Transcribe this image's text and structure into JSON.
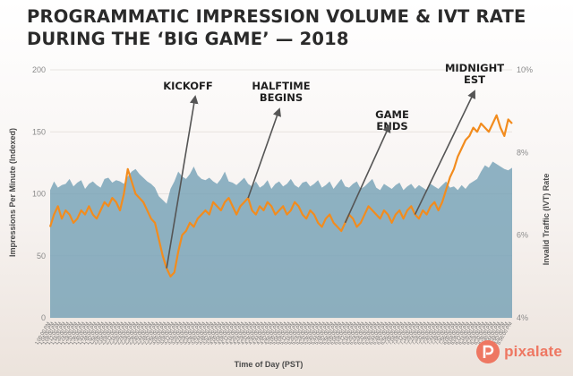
{
  "title_lines": [
    "PROGRAMMATIC IMPRESSION VOLUME & IVT RATE",
    "DURING THE ‘BIG GAME’ — 2018"
  ],
  "brand": "pixalate",
  "colors": {
    "impressions": "#6f9eb4",
    "ivt": "#f28c1e",
    "arrow": "#555555",
    "brand": "#ee7762"
  },
  "chart_data": {
    "type": "area+line",
    "title": "PROGRAMMATIC IMPRESSION VOLUME & IVT RATE DURING THE ‘BIG GAME’ — 2018",
    "xlabel": "Time of Day (PST)",
    "ylabel_left": "Impressions Per Minute (Indexed)",
    "ylabel_right": "Invalid Traffic (IVT) Rate",
    "left_axis": {
      "min": 0,
      "max": 200,
      "ticks": [
        0,
        50,
        100,
        150,
        200
      ]
    },
    "right_axis": {
      "min": 4,
      "max": 10,
      "ticks": [
        "4%",
        "6%",
        "8%",
        "10%"
      ],
      "tick_values": [
        4,
        6,
        8,
        10
      ]
    },
    "x_labels": [
      "1:00:00 PM",
      "1:04:00 PM",
      "1:08:00 PM",
      "1:12:00 PM",
      "1:16:00 PM",
      "1:20:00 PM",
      "1:24:00 PM",
      "1:28:00 PM",
      "1:32:00 PM",
      "1:36:00 PM",
      "1:40:00 PM",
      "1:44:00 PM",
      "1:48:00 PM",
      "1:52:00 PM",
      "1:56:00 PM",
      "2:00:00 PM",
      "2:04:00 PM",
      "2:08:00 PM",
      "2:12:00 PM",
      "2:16:00 PM",
      "2:20:00 PM",
      "2:24:00 PM",
      "2:28:00 PM",
      "2:32:00 PM",
      "2:36:00 PM",
      "2:40:00 PM",
      "2:44:00 PM",
      "2:48:00 PM",
      "2:52:00 PM",
      "2:56:00 PM",
      "3:00:00 PM",
      "3:04:00 PM",
      "3:08:00 PM",
      "3:12:00 PM",
      "3:16:00 PM",
      "3:20:00 PM",
      "3:24:00 PM",
      "3:28:00 PM",
      "3:32:00 PM",
      "3:36:00 PM",
      "3:40:00 PM",
      "3:44:00 PM",
      "3:48:00 PM",
      "3:52:00 PM",
      "3:56:00 PM",
      "4:00:00 PM",
      "4:04:00 PM",
      "4:08:00 PM",
      "4:12:00 PM",
      "4:16:00 PM",
      "4:20:00 PM",
      "4:24:00 PM",
      "4:28:00 PM",
      "4:32:00 PM",
      "4:36:00 PM",
      "4:40:00 PM",
      "4:44:00 PM",
      "4:48:00 PM",
      "4:52:00 PM",
      "4:56:00 PM",
      "5:00:00 PM",
      "5:04:00 PM",
      "5:08:00 PM",
      "5:12:00 PM",
      "5:16:00 PM",
      "5:20:00 PM",
      "5:24:00 PM",
      "5:28:00 PM",
      "5:32:00 PM",
      "5:36:00 PM",
      "5:40:00 PM",
      "5:44:00 PM",
      "5:48:00 PM",
      "5:52:00 PM",
      "5:56:00 PM",
      "6:00:00 PM",
      "6:04:00 PM",
      "6:08:00 PM",
      "6:12:00 PM",
      "6:16:00 PM",
      "6:20:00 PM",
      "6:24:00 PM",
      "6:28:00 PM",
      "6:32:00 PM",
      "6:36:00 PM",
      "6:40:00 PM",
      "6:44:00 PM",
      "6:48:00 PM",
      "6:52:00 PM",
      "6:56:00 PM",
      "7:00:00 PM",
      "7:04:00 PM",
      "7:08:00 PM",
      "7:12:00 PM",
      "7:16:00 PM",
      "7:20:00 PM",
      "7:24:00 PM",
      "7:28:00 PM",
      "7:32:00 PM",
      "7:36:00 PM",
      "7:40:00 PM",
      "7:44:00 PM",
      "7:48:00 PM",
      "7:52:00 PM",
      "7:56:00 PM",
      "8:00:00 PM",
      "8:04:00 PM",
      "8:08:00 PM",
      "8:12:00 PM",
      "8:16:00 PM",
      "8:20:00 PM",
      "8:24:00 PM",
      "8:28:00 PM",
      "8:32:00 PM",
      "8:36:00 PM",
      "8:40:00 PM",
      "8:44:00 PM",
      "8:48:00 PM",
      "8:52:00 PM",
      "8:56:00 PM"
    ],
    "impressions_series": {
      "name": "Impressions Per Minute (Indexed)",
      "values": [
        103,
        110,
        105,
        107,
        108,
        112,
        106,
        109,
        111,
        104,
        108,
        110,
        107,
        105,
        112,
        113,
        109,
        111,
        110,
        108,
        114,
        118,
        120,
        116,
        113,
        110,
        108,
        105,
        98,
        95,
        92,
        104,
        110,
        118,
        114,
        112,
        116,
        122,
        115,
        112,
        111,
        113,
        110,
        108,
        112,
        118,
        110,
        109,
        107,
        110,
        113,
        108,
        106,
        110,
        105,
        107,
        111,
        104,
        108,
        110,
        106,
        108,
        112,
        107,
        105,
        109,
        110,
        106,
        108,
        111,
        105,
        107,
        110,
        104,
        108,
        112,
        106,
        105,
        108,
        110,
        104,
        106,
        109,
        112,
        105,
        103,
        108,
        106,
        104,
        107,
        109,
        103,
        106,
        108,
        104,
        107,
        105,
        103,
        108,
        106,
        104,
        107,
        110,
        105,
        106,
        103,
        107,
        104,
        108,
        110,
        112,
        118,
        123,
        121,
        126,
        124,
        122,
        120,
        119,
        121
      ]
    },
    "ivt_series": {
      "name": "Invalid Traffic (IVT) Rate",
      "values": [
        6.2,
        6.5,
        6.7,
        6.4,
        6.6,
        6.5,
        6.3,
        6.4,
        6.6,
        6.5,
        6.7,
        6.5,
        6.4,
        6.6,
        6.8,
        6.7,
        6.9,
        6.8,
        6.6,
        7.0,
        7.6,
        7.3,
        7.0,
        6.9,
        6.8,
        6.6,
        6.4,
        6.3,
        5.9,
        5.5,
        5.2,
        5.0,
        5.1,
        5.6,
        6.0,
        6.1,
        6.3,
        6.2,
        6.4,
        6.5,
        6.6,
        6.5,
        6.8,
        6.7,
        6.6,
        6.8,
        6.9,
        6.7,
        6.5,
        6.7,
        6.8,
        6.9,
        6.6,
        6.5,
        6.7,
        6.6,
        6.8,
        6.7,
        6.5,
        6.6,
        6.7,
        6.5,
        6.6,
        6.8,
        6.7,
        6.5,
        6.4,
        6.6,
        6.5,
        6.3,
        6.2,
        6.4,
        6.5,
        6.3,
        6.2,
        6.1,
        6.3,
        6.5,
        6.4,
        6.2,
        6.3,
        6.5,
        6.7,
        6.6,
        6.5,
        6.4,
        6.6,
        6.5,
        6.3,
        6.5,
        6.6,
        6.4,
        6.6,
        6.7,
        6.5,
        6.4,
        6.6,
        6.5,
        6.7,
        6.8,
        6.6,
        6.8,
        7.1,
        7.4,
        7.6,
        7.9,
        8.1,
        8.3,
        8.4,
        8.6,
        8.5,
        8.7,
        8.6,
        8.5,
        8.7,
        8.9,
        8.6,
        8.4,
        8.8,
        8.7
      ]
    },
    "annotations": [
      {
        "label": "KICKOFF",
        "x_index": 30,
        "series": "ivt"
      },
      {
        "label": "HALFTIME BEGINS",
        "x_index": 51,
        "series": "ivt"
      },
      {
        "label": "GAME ENDS",
        "x_index": 76,
        "series": "ivt"
      },
      {
        "label": "MIDNIGHT EST",
        "x_index": 94,
        "series": "ivt"
      }
    ]
  }
}
